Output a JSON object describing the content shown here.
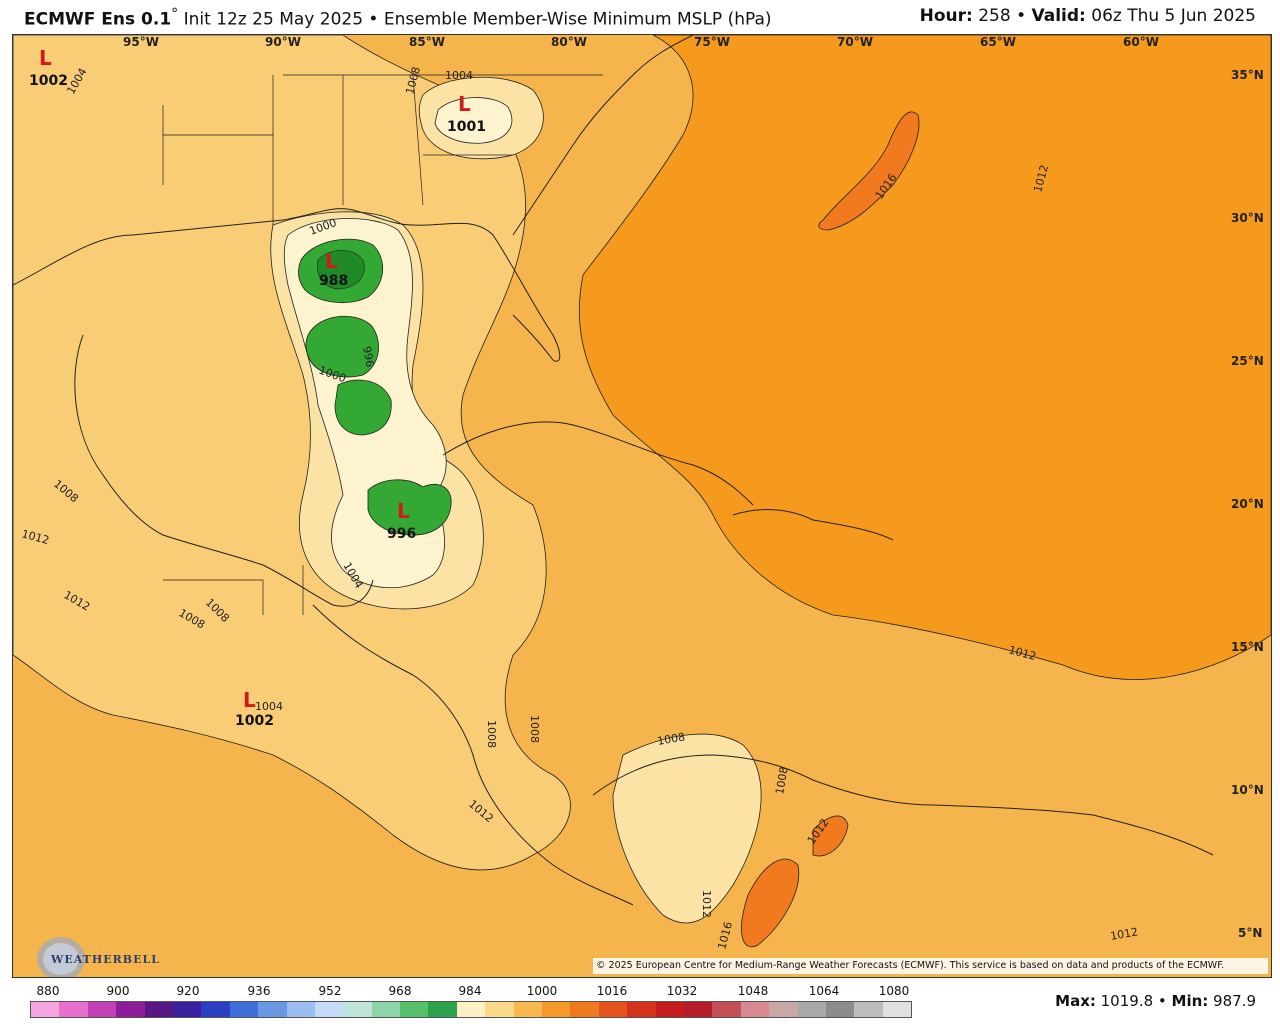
{
  "header": {
    "model": "ECMWF Ens 0.1",
    "degree": "°",
    "init": " Init 12z 25 May 2025",
    "sep": " • ",
    "product": "Ensemble Member-Wise Minimum MSLP (hPa)",
    "hour_label": "Hour:",
    "hour_value": " 258",
    "valid_label": "Valid:",
    "valid_value": " 06z Thu 5 Jun 2025"
  },
  "map": {
    "lon_labels": [
      "95°W",
      "90°W",
      "85°W",
      "80°W",
      "75°W",
      "70°W",
      "65°W",
      "60°W"
    ],
    "lat_labels": [
      "35°N",
      "30°N",
      "25°N",
      "20°N",
      "15°N",
      "10°N",
      "5°N"
    ],
    "lows": [
      {
        "letter": "L",
        "value": "1002"
      },
      {
        "letter": "L",
        "value": "1001"
      },
      {
        "letter": "L",
        "value": "988"
      },
      {
        "letter": "L",
        "value": "996"
      },
      {
        "letter": "L",
        "value": "1002"
      }
    ],
    "isobar_labels": [
      "1004",
      "1004",
      "1008",
      "1000",
      "996",
      "1000",
      "1004",
      "1008",
      "1012",
      "1012",
      "1008",
      "1008",
      "1004",
      "1008",
      "1008",
      "1008",
      "1008",
      "1012",
      "1012",
      "1016",
      "1012",
      "1012",
      "1012",
      "1016",
      "1012"
    ],
    "colors": {
      "ocean_1012": "#f6b54c",
      "band_1016": "#f59a1d",
      "band_1020": "#f27a1e",
      "band_1008": "#f9cc76",
      "band_1004": "#fbe3a6",
      "band_1000": "#fdf3cf",
      "band_996": "#c9ecb5",
      "green_992": "#34a834",
      "green_988": "#1f8a26"
    }
  },
  "copyright": "© 2025 European Centre for Medium-Range Weather Forecasts (ECMWF). This service is based on data and products of the ECMWF.",
  "logo": {
    "text": "WEATHERBELL"
  },
  "colorbar": {
    "labels": [
      "880",
      "900",
      "920",
      "936",
      "952",
      "968",
      "984",
      "1000",
      "1016",
      "1032",
      "1048",
      "1064",
      "1080"
    ],
    "colors": [
      "#f5a6e0",
      "#e86fcc",
      "#c23fb5",
      "#8c1f99",
      "#5a1585",
      "#3a1f9e",
      "#2b3fc2",
      "#3f6fd6",
      "#6a98e4",
      "#9bbdf0",
      "#c5daf7",
      "#bfe3d8",
      "#8fd4a8",
      "#55bf6a",
      "#2ea24a",
      "#fdf0c4",
      "#fbd88a",
      "#f8b84e",
      "#f49a2a",
      "#ef7a1e",
      "#e5541c",
      "#d3331c",
      "#c51d1d",
      "#b51d2b",
      "#c24e56",
      "#d68990",
      "#c9a7a7",
      "#a9a9a9",
      "#8c8c8c",
      "#bdbdbd",
      "#e0e0e0"
    ]
  },
  "stats": {
    "max_label": "Max:",
    "max_value": " 1019.8",
    "sep": " • ",
    "min_label": "Min:",
    "min_value": " 987.9"
  }
}
